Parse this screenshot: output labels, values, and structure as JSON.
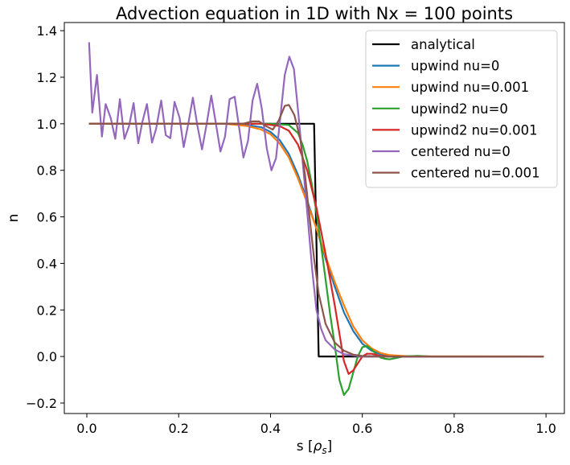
{
  "chart_data": {
    "type": "line",
    "title": "Advection equation in 1D with Nx = 100 points",
    "xlabel_main": "s [",
    "xlabel_sym": "ρ",
    "xlabel_sub": "s",
    "xlabel_end": "]",
    "ylabel": "n",
    "xlim": [
      -0.049,
      1.04
    ],
    "ylim": [
      -0.245,
      1.435
    ],
    "xticks": [
      0.0,
      0.2,
      0.4,
      0.6,
      0.8,
      1.0
    ],
    "xtick_labels": [
      "0.0",
      "0.2",
      "0.4",
      "0.6",
      "0.8",
      "1.0"
    ],
    "yticks": [
      -0.2,
      0.0,
      0.2,
      0.4,
      0.6,
      0.8,
      1.0,
      1.2,
      1.4
    ],
    "ytick_labels": [
      "−0.2",
      "0.0",
      "0.2",
      "0.4",
      "0.6",
      "0.8",
      "1.0",
      "1.2",
      "1.4"
    ],
    "grid": false,
    "legend_position": "top-right",
    "series": [
      {
        "name": "analytical",
        "color": "#000000",
        "points": [
          [
            0.005,
            1
          ],
          [
            0.495,
            1
          ],
          [
            0.505,
            0
          ],
          [
            0.995,
            0
          ]
        ]
      },
      {
        "name": "upwind nu=0",
        "color": "#1f77b4",
        "points": [
          [
            0.005,
            1
          ],
          [
            0.3,
            1
          ],
          [
            0.35,
            0.995
          ],
          [
            0.38,
            0.985
          ],
          [
            0.4,
            0.965
          ],
          [
            0.42,
            0.93
          ],
          [
            0.44,
            0.87
          ],
          [
            0.46,
            0.78
          ],
          [
            0.48,
            0.67
          ],
          [
            0.5,
            0.55
          ],
          [
            0.52,
            0.42
          ],
          [
            0.54,
            0.3
          ],
          [
            0.56,
            0.19
          ],
          [
            0.58,
            0.11
          ],
          [
            0.6,
            0.055
          ],
          [
            0.62,
            0.025
          ],
          [
            0.64,
            0.01
          ],
          [
            0.66,
            0.003
          ],
          [
            0.7,
            0
          ],
          [
            0.995,
            0
          ]
        ]
      },
      {
        "name": "upwind nu=0.001",
        "color": "#ff7f0e",
        "points": [
          [
            0.005,
            1
          ],
          [
            0.3,
            1
          ],
          [
            0.35,
            0.99
          ],
          [
            0.38,
            0.975
          ],
          [
            0.4,
            0.955
          ],
          [
            0.42,
            0.915
          ],
          [
            0.44,
            0.855
          ],
          [
            0.46,
            0.765
          ],
          [
            0.48,
            0.66
          ],
          [
            0.5,
            0.55
          ],
          [
            0.52,
            0.43
          ],
          [
            0.54,
            0.32
          ],
          [
            0.56,
            0.22
          ],
          [
            0.58,
            0.13
          ],
          [
            0.6,
            0.07
          ],
          [
            0.62,
            0.035
          ],
          [
            0.64,
            0.015
          ],
          [
            0.66,
            0.006
          ],
          [
            0.7,
            0.001
          ],
          [
            0.995,
            0
          ]
        ]
      },
      {
        "name": "upwind2 nu=0",
        "color": "#2ca02c",
        "points": [
          [
            0.005,
            1
          ],
          [
            0.4,
            1
          ],
          [
            0.44,
            0.995
          ],
          [
            0.46,
            0.96
          ],
          [
            0.47,
            0.91
          ],
          [
            0.48,
            0.84
          ],
          [
            0.49,
            0.74
          ],
          [
            0.5,
            0.62
          ],
          [
            0.51,
            0.48
          ],
          [
            0.52,
            0.33
          ],
          [
            0.53,
            0.18
          ],
          [
            0.54,
            0.05
          ],
          [
            0.55,
            -0.1
          ],
          [
            0.56,
            -0.165
          ],
          [
            0.57,
            -0.14
          ],
          [
            0.58,
            -0.07
          ],
          [
            0.59,
            0
          ],
          [
            0.6,
            0.04
          ],
          [
            0.61,
            0.045
          ],
          [
            0.62,
            0.03
          ],
          [
            0.63,
            0.01
          ],
          [
            0.64,
            -0.005
          ],
          [
            0.65,
            -0.01
          ],
          [
            0.66,
            -0.012
          ],
          [
            0.67,
            -0.008
          ],
          [
            0.69,
            0
          ],
          [
            0.72,
            0.003
          ],
          [
            0.75,
            0
          ],
          [
            0.995,
            0
          ]
        ]
      },
      {
        "name": "upwind2 nu=0.001",
        "color": "#d62728",
        "points": [
          [
            0.005,
            1
          ],
          [
            0.38,
            1
          ],
          [
            0.42,
            0.99
          ],
          [
            0.44,
            0.97
          ],
          [
            0.46,
            0.91
          ],
          [
            0.48,
            0.8
          ],
          [
            0.5,
            0.64
          ],
          [
            0.52,
            0.44
          ],
          [
            0.54,
            0.22
          ],
          [
            0.55,
            0.1
          ],
          [
            0.56,
            -0.02
          ],
          [
            0.57,
            -0.075
          ],
          [
            0.58,
            -0.06
          ],
          [
            0.59,
            -0.03
          ],
          [
            0.6,
            0
          ],
          [
            0.61,
            0.012
          ],
          [
            0.62,
            0.012
          ],
          [
            0.64,
            0.003
          ],
          [
            0.66,
            0
          ],
          [
            0.995,
            0
          ]
        ]
      },
      {
        "name": "centered nu=0",
        "color": "#9467bd",
        "points": [
          [
            0.005,
            1.35
          ],
          [
            0.012,
            1.048
          ],
          [
            0.022,
            1.21
          ],
          [
            0.033,
            0.945
          ],
          [
            0.041,
            1.085
          ],
          [
            0.052,
            1.025
          ],
          [
            0.062,
            0.935
          ],
          [
            0.072,
            1.106
          ],
          [
            0.082,
            0.935
          ],
          [
            0.092,
            0.99
          ],
          [
            0.102,
            1.089
          ],
          [
            0.112,
            0.916
          ],
          [
            0.121,
            1.008
          ],
          [
            0.131,
            1.085
          ],
          [
            0.142,
            0.919
          ],
          [
            0.151,
            0.979
          ],
          [
            0.162,
            1.1
          ],
          [
            0.172,
            0.951
          ],
          [
            0.182,
            0.938
          ],
          [
            0.191,
            1.094
          ],
          [
            0.202,
            1.025
          ],
          [
            0.211,
            0.9
          ],
          [
            0.221,
            1.0
          ],
          [
            0.231,
            1.112
          ],
          [
            0.241,
            0.99
          ],
          [
            0.251,
            0.89
          ],
          [
            0.261,
            1.0
          ],
          [
            0.271,
            1.121
          ],
          [
            0.281,
            1.002
          ],
          [
            0.291,
            0.881
          ],
          [
            0.301,
            0.945
          ],
          [
            0.311,
            1.106
          ],
          [
            0.322,
            1.116
          ],
          [
            0.332,
            0.979
          ],
          [
            0.341,
            0.855
          ],
          [
            0.351,
            0.927
          ],
          [
            0.361,
            1.1
          ],
          [
            0.371,
            1.172
          ],
          [
            0.381,
            1.066
          ],
          [
            0.392,
            0.893
          ],
          [
            0.402,
            0.8
          ],
          [
            0.412,
            0.852
          ],
          [
            0.422,
            1.037
          ],
          [
            0.431,
            1.21
          ],
          [
            0.441,
            1.288
          ],
          [
            0.451,
            1.235
          ],
          [
            0.461,
            1.037
          ],
          [
            0.471,
            0.817
          ],
          [
            0.481,
            0.6
          ],
          [
            0.491,
            0.37
          ],
          [
            0.5,
            0.2
          ],
          [
            0.51,
            0.12
          ],
          [
            0.52,
            0.07
          ],
          [
            0.54,
            0.03
          ],
          [
            0.56,
            0.01
          ],
          [
            0.6,
            0
          ],
          [
            0.995,
            0
          ]
        ]
      },
      {
        "name": "centered nu=0.001",
        "color": "#8c564b",
        "points": [
          [
            0.005,
            1
          ],
          [
            0.34,
            1
          ],
          [
            0.36,
            1.01
          ],
          [
            0.375,
            1.01
          ],
          [
            0.39,
            0.99
          ],
          [
            0.405,
            0.975
          ],
          [
            0.418,
            1.014
          ],
          [
            0.431,
            1.077
          ],
          [
            0.44,
            1.081
          ],
          [
            0.452,
            1.037
          ],
          [
            0.465,
            0.933
          ],
          [
            0.475,
            0.783
          ],
          [
            0.485,
            0.6
          ],
          [
            0.495,
            0.42
          ],
          [
            0.505,
            0.27
          ],
          [
            0.52,
            0.14
          ],
          [
            0.54,
            0.06
          ],
          [
            0.56,
            0.025
          ],
          [
            0.58,
            0.008
          ],
          [
            0.6,
            0.002
          ],
          [
            0.65,
            0
          ],
          [
            0.995,
            0
          ]
        ]
      }
    ]
  }
}
